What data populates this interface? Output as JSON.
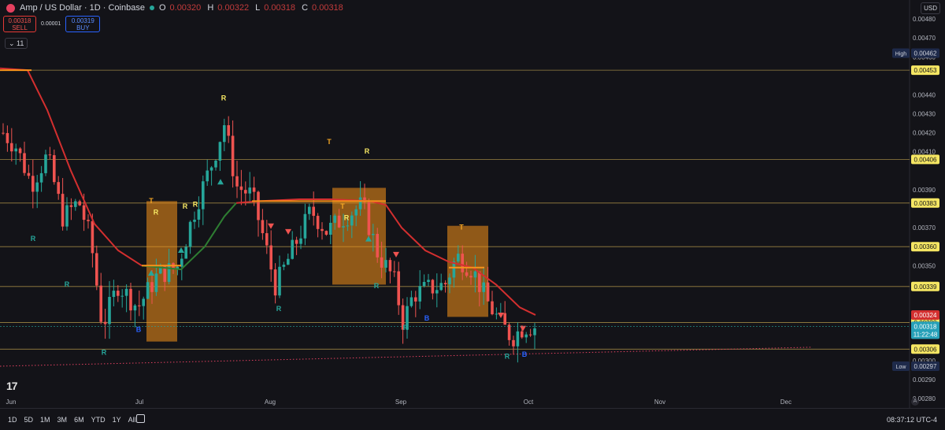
{
  "header": {
    "title": "Amp / US Dollar · 1D · Coinbase",
    "ohlc": {
      "o_label": "O",
      "o": "0.00320",
      "h_label": "H",
      "h": "0.00322",
      "l_label": "L",
      "l": "0.00318",
      "c_label": "C",
      "c": "0.00318"
    }
  },
  "trade": {
    "sell_price": "0.00318",
    "sell_label": "SELL",
    "spread": "0.00001",
    "buy_price": "0.00319",
    "buy_label": "BUY"
  },
  "indicators_count": "11",
  "currency": "USD",
  "time_range_buttons": [
    "1D",
    "5D",
    "1M",
    "3M",
    "6M",
    "YTD",
    "1Y",
    "All"
  ],
  "clock": "08:37:12 UTC-4",
  "watermark": "17",
  "colors": {
    "bull": "#26a69a",
    "bear": "#ef5350",
    "band": "#f7931a",
    "ma_red": "#d32f2f",
    "ma_green": "#2e7d32",
    "hline": "#c8a951"
  },
  "chart_data": {
    "type": "candlestick",
    "x_labels": [
      "Jun",
      "Jul",
      "Aug",
      "Sep",
      "Oct",
      "Nov",
      "Dec"
    ],
    "y_ticks": [
      "0.00480",
      "0.00470",
      "0.00460",
      "0.00440",
      "0.00430",
      "0.00420",
      "0.00410",
      "0.00390",
      "0.00370",
      "0.00350",
      "0.00300",
      "0.00290",
      "0.00280"
    ],
    "ylim": [
      0.00275,
      0.0049
    ],
    "price_lines": [
      "0.00453",
      "0.00406",
      "0.00383",
      "0.00360",
      "0.00339",
      "0.00320",
      "0.00306"
    ],
    "badges": {
      "high_label": "High",
      "high": "0.00462",
      "low_label": "Low",
      "low": "0.00297",
      "ma": "0.00324",
      "last": "0.00318",
      "countdown": "11:22:48"
    },
    "signal_labels": {
      "R": "R",
      "B": "B",
      "T": "T"
    },
    "trendline": {
      "start": 0.00297,
      "end": 0.00307
    }
  },
  "icons": {
    "symbol": "amp-logo-icon",
    "calendar": "calendar-icon",
    "auto": "auto-scale-icon"
  }
}
